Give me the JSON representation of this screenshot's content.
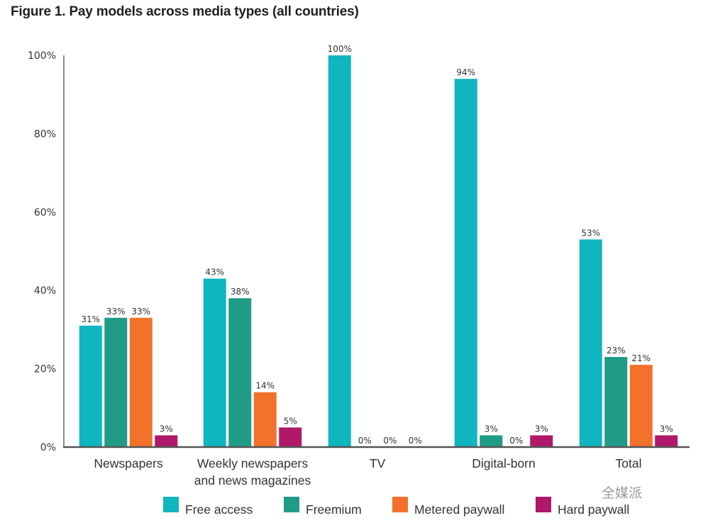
{
  "title": "Figure 1. Pay models across media types (all countries)",
  "watermark": "全媒派",
  "chart_data": {
    "type": "bar",
    "title": "Figure 1. Pay models across media types (all countries)",
    "xlabel": "",
    "ylabel": "",
    "ylim": [
      0,
      100
    ],
    "yticks": [
      0,
      20,
      40,
      60,
      80,
      100
    ],
    "ytick_labels": [
      "0%",
      "20%",
      "40%",
      "60%",
      "80%",
      "100%"
    ],
    "grid": false,
    "legend_position": "bottom",
    "categories": [
      "Newspapers",
      "Weekly newspapers and news magazines",
      "TV",
      "Digital-born",
      "Total"
    ],
    "category_lines": [
      [
        "Newspapers"
      ],
      [
        "Weekly newspapers",
        "and news magazines"
      ],
      [
        "TV"
      ],
      [
        "Digital-born"
      ],
      [
        "Total"
      ]
    ],
    "series": [
      {
        "name": "Free access",
        "color": "#0fb5bf",
        "values": [
          31,
          43,
          100,
          94,
          53
        ],
        "labels": [
          "31%",
          "43%",
          "100%",
          "94%",
          "53%"
        ]
      },
      {
        "name": "Freemium",
        "color": "#1f9b87",
        "values": [
          33,
          38,
          0,
          3,
          23
        ],
        "labels": [
          "33%",
          "38%",
          "0%",
          "3%",
          "23%"
        ]
      },
      {
        "name": "Metered paywall",
        "color": "#f2722b",
        "values": [
          33,
          14,
          0,
          0,
          21
        ],
        "labels": [
          "33%",
          "14%",
          "0%",
          "0%",
          "21%"
        ]
      },
      {
        "name": "Hard paywall",
        "color": "#b0186a",
        "values": [
          3,
          5,
          0,
          3,
          3
        ],
        "labels": [
          "3%",
          "5%",
          "0%",
          "3%",
          "3%"
        ]
      }
    ]
  }
}
